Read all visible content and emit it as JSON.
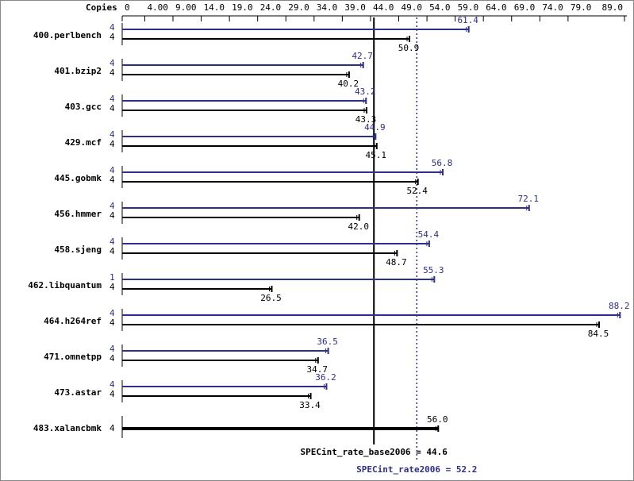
{
  "chart_data": {
    "type": "bar",
    "copies_header": "Copies",
    "categories": [
      "400.perlbench",
      "401.bzip2",
      "403.gcc",
      "429.mcf",
      "445.gobmk",
      "456.hmmer",
      "458.sjeng",
      "462.libquantum",
      "464.h264ref",
      "471.omnetpp",
      "473.astar",
      "483.xalancbmk"
    ],
    "series": [
      {
        "color": "#2e2e8c",
        "copies": [
          4,
          4,
          4,
          4,
          4,
          4,
          4,
          1,
          4,
          4,
          4,
          null
        ],
        "values": [
          61.4,
          42.7,
          43.2,
          44.9,
          56.8,
          72.1,
          54.4,
          55.3,
          88.2,
          36.5,
          36.2,
          null
        ],
        "value_labels": [
          "61.4",
          "42.7",
          "43.2",
          "44.9",
          "56.8",
          "72.1",
          "54.4",
          "55.3",
          "88.2",
          "36.5",
          "36.2",
          null
        ]
      },
      {
        "color": "#000000",
        "copies": [
          4,
          4,
          4,
          4,
          4,
          4,
          4,
          4,
          4,
          4,
          4,
          4
        ],
        "values": [
          50.9,
          40.2,
          43.3,
          45.1,
          52.4,
          42.0,
          48.7,
          26.5,
          84.5,
          34.7,
          33.4,
          56.0
        ],
        "value_labels": [
          "50.9",
          "40.2",
          "43.3",
          "45.1",
          "52.4",
          "42.0",
          "48.7",
          "26.5",
          "84.5",
          "34.7",
          "33.4",
          "56.0"
        ]
      }
    ],
    "xlim": [
      0,
      89
    ],
    "xticks": [
      0,
      {
        "value": 4,
        "label": "4.00"
      },
      {
        "value": 9,
        "label": "9.00"
      },
      {
        "value": 14,
        "label": "14.0"
      },
      {
        "value": 19,
        "label": "19.0"
      },
      {
        "value": 24,
        "label": "24.0"
      },
      {
        "value": 29,
        "label": "29.0"
      },
      {
        "value": 34,
        "label": "34.0"
      },
      {
        "value": 39,
        "label": "39.0"
      },
      {
        "value": 44,
        "label": "44.0"
      },
      {
        "value": 49,
        "label": "49.0"
      },
      {
        "value": 54,
        "label": "54.0"
      },
      {
        "value": 59,
        "label": "59.0"
      },
      {
        "value": 64,
        "label": "64.0"
      },
      {
        "value": 69,
        "label": "69.0"
      },
      {
        "value": 74,
        "label": "74.0"
      },
      {
        "value": 79,
        "label": "79.0"
      },
      {
        "value": 89,
        "label": "89.0"
      }
    ],
    "reference_lines": [
      {
        "label": "SPECint_rate_base2006 = 44.6",
        "value": 44.6,
        "color": "#000000",
        "dashed": false
      },
      {
        "label": "SPECint_rate2006 = 52.2",
        "value": 52.2,
        "color": "#2e2e8c",
        "dashed": true
      }
    ]
  }
}
